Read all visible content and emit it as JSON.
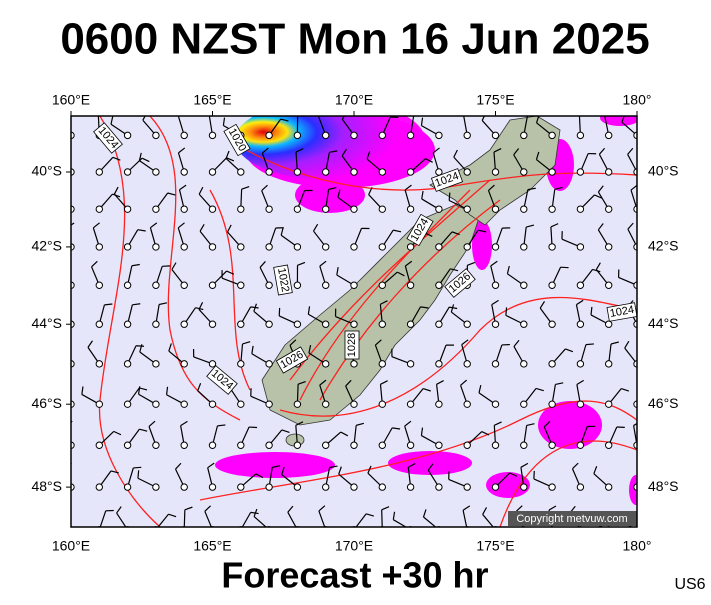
{
  "title": "0600 NZST Mon 16 Jun 2025",
  "footer": "Forecast +30 hr",
  "code": "US6",
  "copyright": "Copyright metvuw.com",
  "lon_ticks": [
    {
      "value": 160,
      "label": "160°E"
    },
    {
      "value": 165,
      "label": "165°E"
    },
    {
      "value": 170,
      "label": "170°E"
    },
    {
      "value": 175,
      "label": "175°E"
    },
    {
      "value": 180,
      "label": "180°"
    }
  ],
  "lat_ticks": [
    {
      "value": -40,
      "label": "40°S"
    },
    {
      "value": -42,
      "label": "42°S"
    },
    {
      "value": -44,
      "label": "44°S"
    },
    {
      "value": -46,
      "label": "46°S"
    },
    {
      "value": -48,
      "label": "48°S"
    }
  ],
  "isobar_labels": [
    "1024",
    "1020",
    "1024",
    "1024",
    "1022",
    "1026",
    "1024",
    "1026",
    "1028",
    "1024"
  ]
}
